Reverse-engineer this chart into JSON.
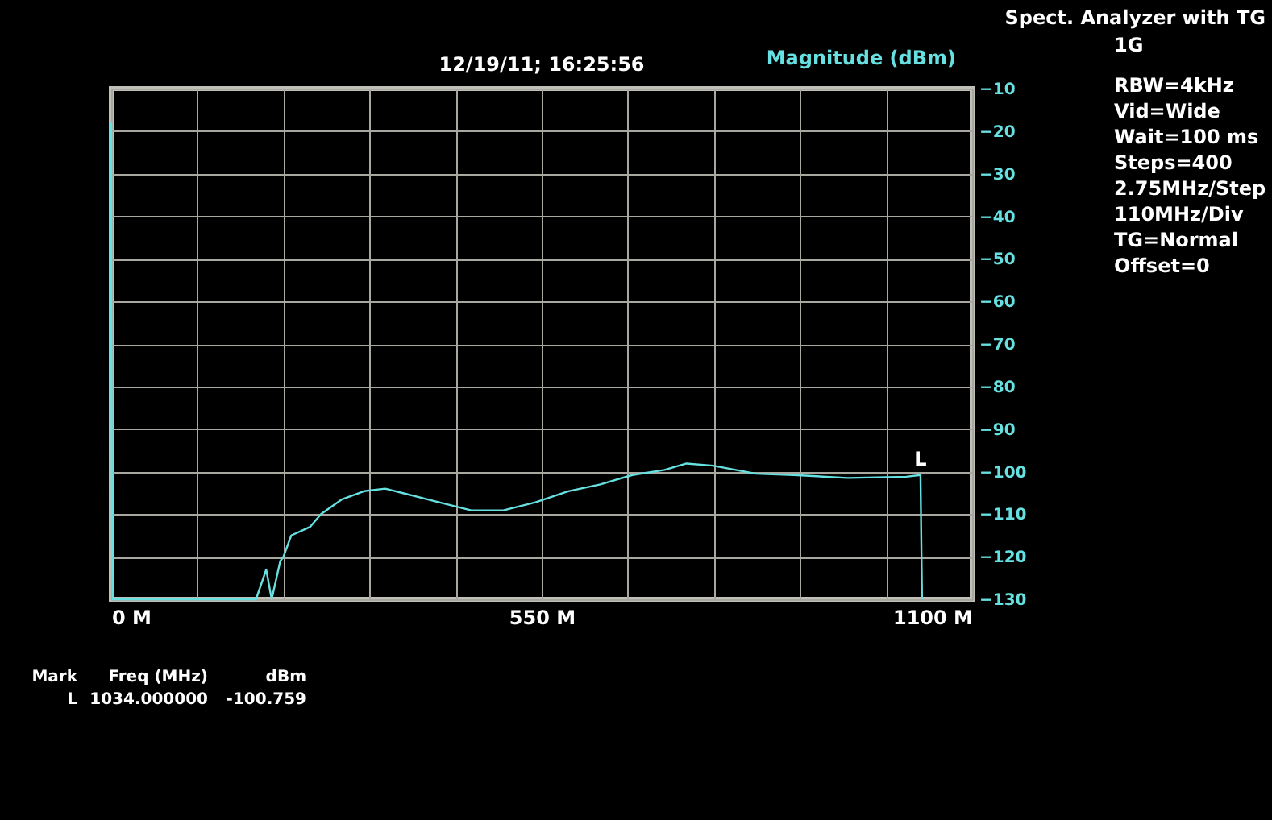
{
  "chart_data": {
    "type": "line",
    "title": "12/19/11; 16:25:56",
    "ylabel": "Magnitude (dBm)",
    "x": [
      0,
      0,
      1,
      2,
      3,
      185,
      198,
      205,
      216,
      220,
      230,
      254,
      268,
      295,
      323,
      350,
      378,
      419,
      460,
      501,
      542,
      584,
      625,
      666,
      707,
      735,
      769,
      824,
      872,
      941,
      1016,
      1034,
      1036
    ],
    "series": [
      {
        "color": "#66e0e0",
        "values": [
          -18,
          -60,
          -116,
          -130,
          -130,
          -130,
          -123,
          -130,
          -121,
          -120,
          -115,
          -113,
          -110,
          -106.5,
          -104.6,
          -104,
          -105.3,
          -107.2,
          -109.1,
          -109.1,
          -107.2,
          -104.6,
          -103,
          -100.8,
          -99.6,
          -98.1,
          -98.6,
          -100.5,
          -100.8,
          -101.5,
          -101.2,
          -100.8,
          -130
        ]
      }
    ],
    "xlim": [
      0,
      1100
    ],
    "xticks": [
      {
        "value": 0,
        "label": "0 M"
      },
      {
        "value": 110,
        "label": null
      },
      {
        "value": 220,
        "label": null
      },
      {
        "value": 330,
        "label": null
      },
      {
        "value": 440,
        "label": null
      },
      {
        "value": 550,
        "label": "550 M"
      },
      {
        "value": 660,
        "label": null
      },
      {
        "value": 770,
        "label": null
      },
      {
        "value": 880,
        "label": null
      },
      {
        "value": 990,
        "label": null
      },
      {
        "value": 1100,
        "label": "1100 M"
      }
    ],
    "ylim": [
      -130,
      -10
    ],
    "yticks": [
      -10,
      -20,
      -30,
      -40,
      -50,
      -60,
      -70,
      -80,
      -90,
      -100,
      -110,
      -120,
      -130
    ],
    "grid": true,
    "marker": "none",
    "line_style": "solid",
    "annotations": [
      {
        "text": "L",
        "x": 1034,
        "y": -100.759
      },
      "Spect. Analyzer with TG",
      "1G",
      "RBW=4kHz",
      "Vid=Wide",
      "Wait=100 ms",
      "Steps=400",
      "2.75MHz/Step",
      "110MHz/Div",
      "TG=Normal",
      "Offset=0",
      "Mark",
      "Freq (MHz)",
      "dBm",
      "L",
      "1034.000000",
      "-100.759"
    ]
  }
}
